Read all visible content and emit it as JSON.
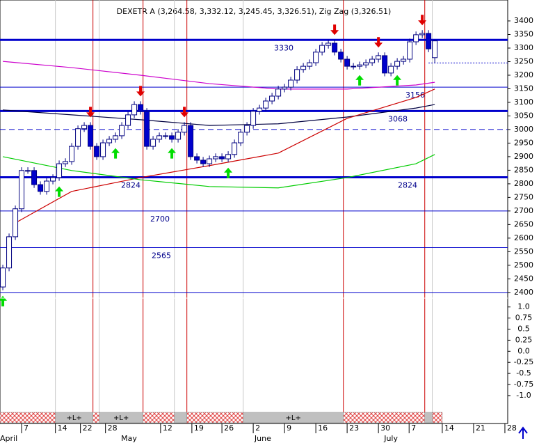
{
  "chart_data": [
    {
      "type": "candlestick",
      "title": "DEXETR A (3,264.58, 3,332.12, 3,245.45, 3,326.51), Zig Zag (3,326.51)",
      "xlim": [
        -0.45,
        80.65
      ],
      "xticks": [
        {
          "value": 3,
          "label": "7"
        },
        {
          "value": 8.4,
          "label": "14"
        },
        {
          "value": 12.4,
          "label": "22"
        },
        {
          "value": 16.4,
          "label": "28"
        },
        {
          "value": 25.2,
          "label": "12"
        },
        {
          "value": 30.2,
          "label": "19"
        },
        {
          "value": 35,
          "label": "26"
        },
        {
          "value": 40,
          "label": "2"
        },
        {
          "value": 45,
          "label": "9"
        },
        {
          "value": 50,
          "label": "16"
        },
        {
          "value": 55,
          "label": "23"
        },
        {
          "value": 60,
          "label": "30"
        },
        {
          "value": 64.9,
          "label": "7"
        },
        {
          "value": 70.2,
          "label": "14"
        },
        {
          "value": 75.2,
          "label": "21"
        },
        {
          "value": 80.2,
          "label": "28"
        }
      ],
      "months": [
        {
          "value": -0.45,
          "label": "April"
        },
        {
          "value": 18.9,
          "label": "May"
        },
        {
          "value": 40.2,
          "label": "June"
        },
        {
          "value": 60.9,
          "label": "July"
        }
      ],
      "ylim": [
        2379,
        3477
      ],
      "yticks": [
        3400,
        3350,
        3300,
        3250,
        3200,
        3150,
        3100,
        3050,
        3000,
        2950,
        2900,
        2850,
        2800,
        2750,
        2700,
        2650,
        2600,
        2550,
        2500,
        2450,
        2400
      ],
      "open": [
        2420,
        2490,
        2605,
        2708,
        2849,
        2849,
        2797,
        2772,
        2810,
        2823,
        2874,
        2882,
        2938,
        3003,
        3015,
        2938,
        2900,
        2951,
        2964,
        2977,
        3015,
        3054,
        3092,
        3067,
        2938,
        2964,
        2977,
        2977,
        2964,
        2990,
        3015,
        2900,
        2887,
        2874,
        2892,
        2900,
        2892,
        2908,
        2951,
        2990,
        3015,
        3067,
        3079,
        3105,
        3123,
        3149,
        3156,
        3182,
        3221,
        3233,
        3246,
        3285,
        3310,
        3318,
        3285,
        3259,
        3233,
        3233,
        3238,
        3246,
        3259,
        3272,
        3208,
        3233,
        3251,
        3259,
        3323,
        3349,
        3354,
        3264.58
      ],
      "high": [
        2502,
        2617,
        2720,
        2861,
        2861,
        2861,
        2809,
        2822,
        2835,
        2886,
        2894,
        2950,
        3015,
        3027,
        3027,
        2950,
        2963,
        2976,
        2989,
        3027,
        3066,
        3104,
        3104,
        3079,
        2976,
        2989,
        2989,
        2989,
        3002,
        3027,
        3027,
        2912,
        2899,
        2904,
        2912,
        2912,
        2920,
        2963,
        3002,
        3027,
        3079,
        3091,
        3117,
        3135,
        3161,
        3168,
        3194,
        3233,
        3245,
        3258,
        3297,
        3322,
        3330,
        3330,
        3297,
        3271,
        3245,
        3250,
        3258,
        3271,
        3284,
        3284,
        3245,
        3263,
        3271,
        3335,
        3361,
        3366,
        3366,
        3332.12
      ],
      "low": [
        2408,
        2478,
        2593,
        2696,
        2837,
        2785,
        2760,
        2760,
        2798,
        2811,
        2862,
        2870,
        2926,
        2991,
        2926,
        2888,
        2888,
        2939,
        2952,
        2965,
        3003,
        3042,
        3055,
        2926,
        2926,
        2952,
        2965,
        2952,
        2952,
        2978,
        2888,
        2875,
        2862,
        2862,
        2880,
        2880,
        2880,
        2896,
        2939,
        2978,
        3003,
        3055,
        3067,
        3093,
        3111,
        3137,
        3144,
        3170,
        3209,
        3221,
        3234,
        3273,
        3298,
        3273,
        3247,
        3221,
        3221,
        3221,
        3226,
        3234,
        3247,
        3196,
        3196,
        3221,
        3239,
        3247,
        3311,
        3337,
        3285,
        3245.45
      ],
      "close": [
        2490,
        2605,
        2708,
        2849,
        2849,
        2797,
        2772,
        2810,
        2823,
        2874,
        2882,
        2938,
        3003,
        3015,
        2938,
        2900,
        2951,
        2964,
        2977,
        3015,
        3054,
        3092,
        3067,
        2938,
        2964,
        2977,
        2977,
        2964,
        2990,
        3015,
        2900,
        2887,
        2874,
        2892,
        2900,
        2892,
        2908,
        2951,
        2990,
        3015,
        3067,
        3079,
        3105,
        3123,
        3149,
        3156,
        3182,
        3221,
        3233,
        3246,
        3285,
        3310,
        3318,
        3285,
        3259,
        3233,
        3233,
        3238,
        3246,
        3259,
        3272,
        3208,
        3233,
        3251,
        3259,
        3323,
        3349,
        3354,
        3297,
        3326.51
      ],
      "up_color": "#ffffff",
      "down_color": "#0000cc",
      "moving_averages": [
        {
          "color": "#cc00cc",
          "x": [
            0,
            11,
            22,
            33,
            44,
            55,
            66,
            69
          ],
          "values": [
            3251,
            3228,
            3200,
            3169,
            3149,
            3149,
            3164,
            3174
          ]
        },
        {
          "color": "#000040",
          "x": [
            0,
            11,
            22,
            33,
            44,
            55,
            66,
            69
          ],
          "values": [
            3072,
            3054,
            3036,
            3015,
            3021,
            3046,
            3079,
            3092
          ]
        },
        {
          "color": "#cc0000",
          "x": [
            2,
            11,
            22,
            33,
            44,
            55,
            66,
            69
          ],
          "values": [
            2656,
            2772,
            2823,
            2867,
            2913,
            3041,
            3118,
            3149
          ]
        },
        {
          "color": "#00cc00",
          "x": [
            0,
            11,
            22,
            33,
            44,
            55,
            66,
            69
          ],
          "values": [
            2900,
            2849,
            2815,
            2790,
            2785,
            2823,
            2874,
            2908
          ]
        }
      ],
      "levels": [
        {
          "value": 3330,
          "style": "thick"
        },
        {
          "value": 3156,
          "style": "thin"
        },
        {
          "value": 3068,
          "style": "thick"
        },
        {
          "value": 2824,
          "style": "thick"
        },
        {
          "value": 2700,
          "style": "thin"
        },
        {
          "value": 2565,
          "style": "thin"
        },
        {
          "value": 2400,
          "style": "thin"
        }
      ],
      "dashed_level": 3000,
      "dotted_level": 3245,
      "sell_signals": [
        14,
        22,
        29,
        53,
        60,
        67
      ],
      "buy_signals": [
        0,
        9,
        18,
        27,
        36,
        57,
        63
      ],
      "red_lines": [
        14.4,
        22.4,
        29.4,
        54.4,
        67.4
      ],
      "gray_lines": [
        8.4,
        15.4,
        27.4,
        38.4,
        68.6
      ],
      "bands": [
        {
          "from": -0.45,
          "to": 8.4,
          "kind": "neg"
        },
        {
          "from": 8.4,
          "to": 14.4,
          "kind": "pos",
          "label": "+L+"
        },
        {
          "from": 14.4,
          "to": 15.4,
          "kind": "neg"
        },
        {
          "from": 15.4,
          "to": 22.4,
          "kind": "pos",
          "label": "+L+"
        },
        {
          "from": 22.4,
          "to": 27.4,
          "kind": "neg"
        },
        {
          "from": 27.4,
          "to": 29.4,
          "kind": "pos"
        },
        {
          "from": 29.4,
          "to": 38.4,
          "kind": "neg"
        },
        {
          "from": 38.4,
          "to": 54.4,
          "kind": "pos",
          "label": "+L+"
        },
        {
          "from": 54.4,
          "to": 67.4,
          "kind": "neg"
        },
        {
          "from": 67.4,
          "to": 68.6,
          "kind": "pos"
        },
        {
          "from": 68.6,
          "to": 70.2,
          "kind": "neg"
        }
      ]
    },
    {
      "type": "line",
      "ylim": [
        -1.3,
        1.2
      ],
      "yticks": [
        {
          "value": 1,
          "label": "1.0"
        },
        0.75,
        0.5,
        0.25,
        {
          "value": 0,
          "label": "0.0"
        },
        -0.25,
        -0.5,
        -0.75,
        {
          "value": -1,
          "label": "-1.0"
        }
      ]
    }
  ]
}
